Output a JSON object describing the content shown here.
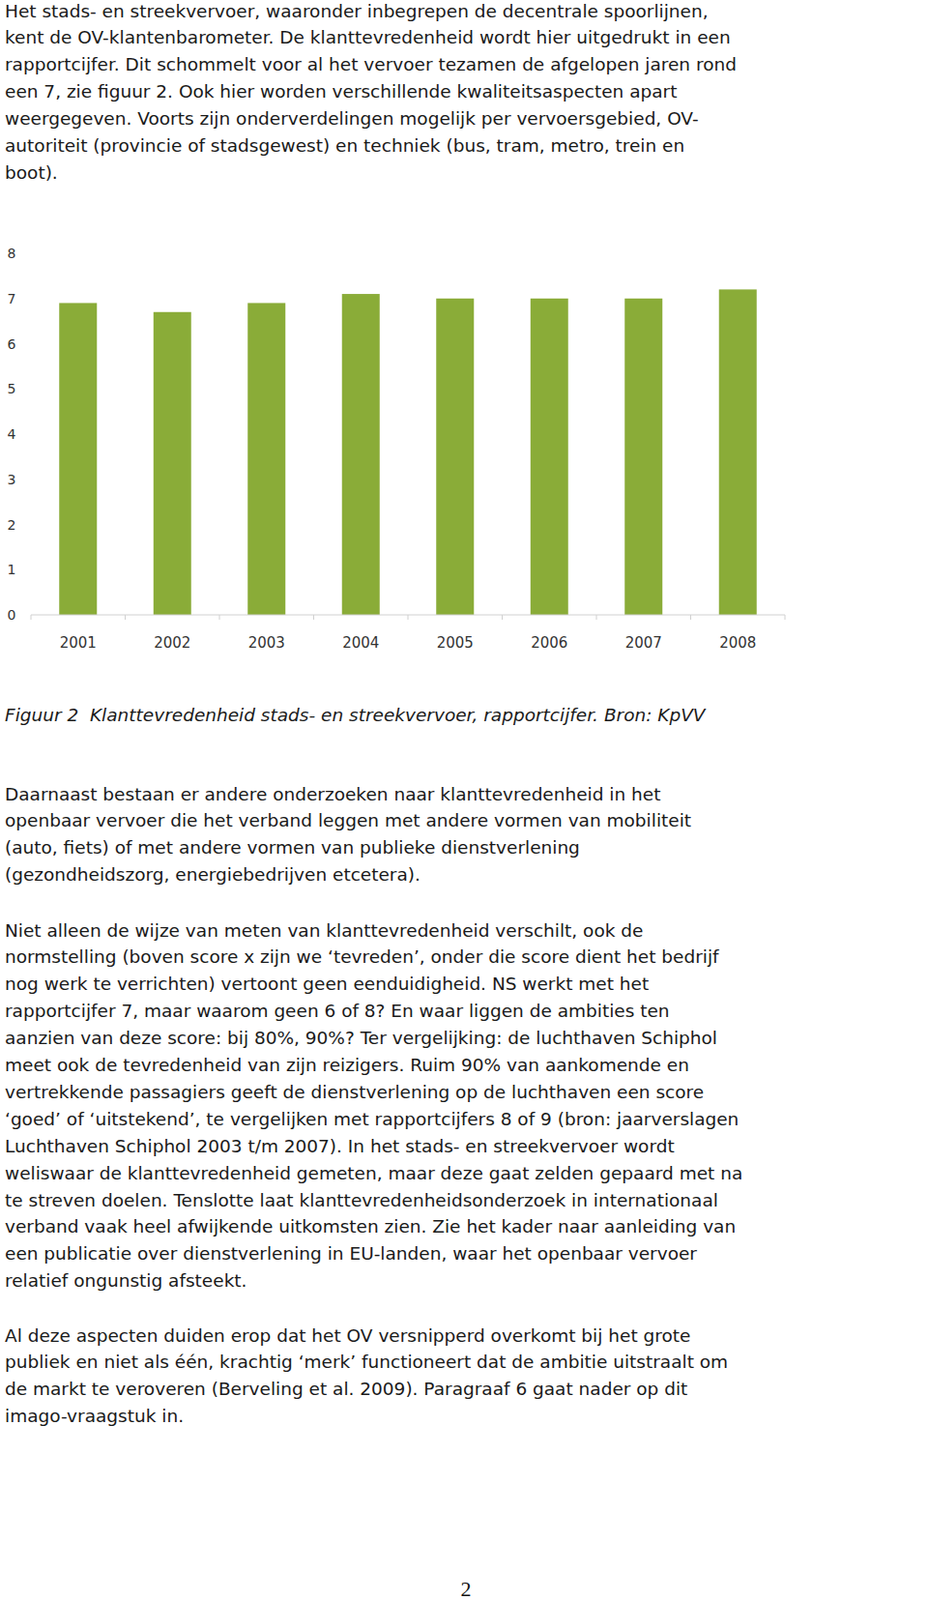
{
  "paragraphs": [
    {
      "lines": [
        "Het stads- en streekvervoer, waaronder inbegrepen de decentrale spoorlijnen,",
        "kent de OV-klantenbarometer. De klanttevredenheid wordt hier uitgedrukt in een",
        "rapportcijfer. Dit schommelt voor al het vervoer tezamen de afgelopen jaren rond",
        "een 7, zie figuur 2. Ook hier worden verschillende kwaliteitsaspecten apart",
        "weergegeven. Voorts zijn onderverdelingen mogelijk per vervoersgebied, OV-",
        "autoriteit (provincie of stadsgewest) en techniek (bus, tram, metro, trein en",
        "boot)."
      ]
    },
    {
      "lines": [
        "Daarnaast bestaan er andere onderzoeken naar klanttevredenheid in het",
        "openbaar vervoer die het verband leggen met andere vormen van mobiliteit",
        "(auto, fiets) of met andere vormen van publieke dienstverlening",
        "(gezondheidszorg, energiebedrijven etcetera)."
      ]
    },
    {
      "lines": [
        "Niet alleen de wijze van meten van klanttevredenheid verschilt, ook de",
        "normstelling (boven score x zijn we ‘tevreden’, onder die score dient het bedrijf",
        "nog werk te verrichten) vertoont geen eenduidigheid. NS werkt met het",
        "rapportcijfer 7, maar waarom geen 6 of 8? En waar liggen de ambities ten",
        "aanzien van deze score: bij 80%, 90%? Ter vergelijking: de luchthaven Schiphol",
        "meet ook de tevredenheid van zijn reizigers. Ruim 90% van aankomende en",
        "vertrekkende passagiers geeft de dienstverlening op de luchthaven een score",
        "‘goed’ of ‘uitstekend’, te vergelijken met rapportcijfers 8 of 9 (bron: jaarverslagen",
        "Luchthaven Schiphol 2003 t/m 2007). In het stads- en streekvervoer wordt",
        "weliswaar de klanttevredenheid gemeten, maar deze gaat zelden gepaard met na",
        "te streven doelen. Tenslotte laat klanttevredenheidsonderzoek in internationaal",
        "verband vaak heel afwijkende uitkomsten zien. Zie het kader naar aanleiding van",
        "een publicatie over dienstverlening in EU-landen, waar het openbaar vervoer",
        "relatief ongunstig afsteekt."
      ]
    },
    {
      "lines": [
        "Al deze aspecten duiden erop dat het OV versnipperd overkomt bij het grote",
        "publiek en niet als één, krachtig ‘merk’ functioneert dat de ambitie uitstraalt om",
        "de markt te veroveren (Berveling et al. 2009). Paragraaf 6 gaat nader op dit",
        "imago-vraagstuk in."
      ]
    }
  ],
  "chart_data": {
    "type": "bar",
    "categories": [
      "2001",
      "2002",
      "2003",
      "2004",
      "2005",
      "2006",
      "2007",
      "2008"
    ],
    "values": [
      6.9,
      6.7,
      6.9,
      7.1,
      7.0,
      7.0,
      7.0,
      7.2
    ],
    "color": "#8aac38",
    "ylim": [
      0,
      8
    ],
    "yticks": [
      0,
      1,
      2,
      3,
      4,
      5,
      6,
      7,
      8
    ],
    "grid": false
  },
  "caption": "Figuur 2  Klanttevredenheid stads- en streekvervoer, rapportcijfer. Bron: KpVV",
  "page_number": "2"
}
